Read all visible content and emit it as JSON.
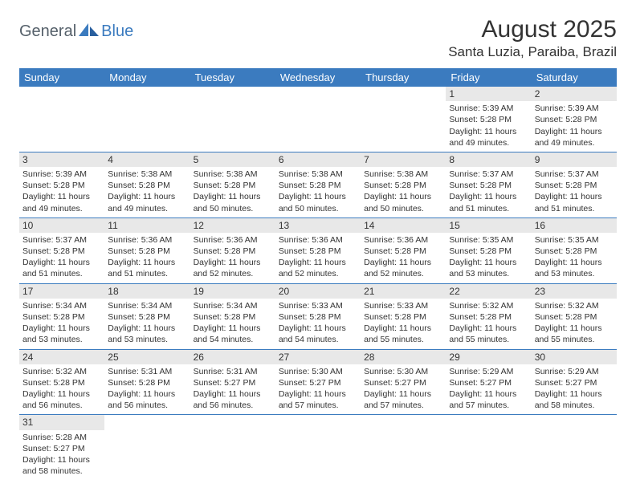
{
  "logo": {
    "part1": "General",
    "part2": "Blue"
  },
  "title": "August 2025",
  "location": "Santa Luzia, Paraiba, Brazil",
  "colors": {
    "header_bg": "#3b7bbf",
    "header_text": "#ffffff",
    "daynum_bg": "#e8e8e8",
    "cell_border": "#3b7bbf",
    "logo_gray": "#55606a",
    "logo_blue": "#3b7bbf"
  },
  "weekdays": [
    "Sunday",
    "Monday",
    "Tuesday",
    "Wednesday",
    "Thursday",
    "Friday",
    "Saturday"
  ],
  "weeks": [
    [
      {
        "n": "",
        "sr": "",
        "ss": "",
        "dl": ""
      },
      {
        "n": "",
        "sr": "",
        "ss": "",
        "dl": ""
      },
      {
        "n": "",
        "sr": "",
        "ss": "",
        "dl": ""
      },
      {
        "n": "",
        "sr": "",
        "ss": "",
        "dl": ""
      },
      {
        "n": "",
        "sr": "",
        "ss": "",
        "dl": ""
      },
      {
        "n": "1",
        "sr": "Sunrise: 5:39 AM",
        "ss": "Sunset: 5:28 PM",
        "dl": "Daylight: 11 hours and 49 minutes."
      },
      {
        "n": "2",
        "sr": "Sunrise: 5:39 AM",
        "ss": "Sunset: 5:28 PM",
        "dl": "Daylight: 11 hours and 49 minutes."
      }
    ],
    [
      {
        "n": "3",
        "sr": "Sunrise: 5:39 AM",
        "ss": "Sunset: 5:28 PM",
        "dl": "Daylight: 11 hours and 49 minutes."
      },
      {
        "n": "4",
        "sr": "Sunrise: 5:38 AM",
        "ss": "Sunset: 5:28 PM",
        "dl": "Daylight: 11 hours and 49 minutes."
      },
      {
        "n": "5",
        "sr": "Sunrise: 5:38 AM",
        "ss": "Sunset: 5:28 PM",
        "dl": "Daylight: 11 hours and 50 minutes."
      },
      {
        "n": "6",
        "sr": "Sunrise: 5:38 AM",
        "ss": "Sunset: 5:28 PM",
        "dl": "Daylight: 11 hours and 50 minutes."
      },
      {
        "n": "7",
        "sr": "Sunrise: 5:38 AM",
        "ss": "Sunset: 5:28 PM",
        "dl": "Daylight: 11 hours and 50 minutes."
      },
      {
        "n": "8",
        "sr": "Sunrise: 5:37 AM",
        "ss": "Sunset: 5:28 PM",
        "dl": "Daylight: 11 hours and 51 minutes."
      },
      {
        "n": "9",
        "sr": "Sunrise: 5:37 AM",
        "ss": "Sunset: 5:28 PM",
        "dl": "Daylight: 11 hours and 51 minutes."
      }
    ],
    [
      {
        "n": "10",
        "sr": "Sunrise: 5:37 AM",
        "ss": "Sunset: 5:28 PM",
        "dl": "Daylight: 11 hours and 51 minutes."
      },
      {
        "n": "11",
        "sr": "Sunrise: 5:36 AM",
        "ss": "Sunset: 5:28 PM",
        "dl": "Daylight: 11 hours and 51 minutes."
      },
      {
        "n": "12",
        "sr": "Sunrise: 5:36 AM",
        "ss": "Sunset: 5:28 PM",
        "dl": "Daylight: 11 hours and 52 minutes."
      },
      {
        "n": "13",
        "sr": "Sunrise: 5:36 AM",
        "ss": "Sunset: 5:28 PM",
        "dl": "Daylight: 11 hours and 52 minutes."
      },
      {
        "n": "14",
        "sr": "Sunrise: 5:36 AM",
        "ss": "Sunset: 5:28 PM",
        "dl": "Daylight: 11 hours and 52 minutes."
      },
      {
        "n": "15",
        "sr": "Sunrise: 5:35 AM",
        "ss": "Sunset: 5:28 PM",
        "dl": "Daylight: 11 hours and 53 minutes."
      },
      {
        "n": "16",
        "sr": "Sunrise: 5:35 AM",
        "ss": "Sunset: 5:28 PM",
        "dl": "Daylight: 11 hours and 53 minutes."
      }
    ],
    [
      {
        "n": "17",
        "sr": "Sunrise: 5:34 AM",
        "ss": "Sunset: 5:28 PM",
        "dl": "Daylight: 11 hours and 53 minutes."
      },
      {
        "n": "18",
        "sr": "Sunrise: 5:34 AM",
        "ss": "Sunset: 5:28 PM",
        "dl": "Daylight: 11 hours and 53 minutes."
      },
      {
        "n": "19",
        "sr": "Sunrise: 5:34 AM",
        "ss": "Sunset: 5:28 PM",
        "dl": "Daylight: 11 hours and 54 minutes."
      },
      {
        "n": "20",
        "sr": "Sunrise: 5:33 AM",
        "ss": "Sunset: 5:28 PM",
        "dl": "Daylight: 11 hours and 54 minutes."
      },
      {
        "n": "21",
        "sr": "Sunrise: 5:33 AM",
        "ss": "Sunset: 5:28 PM",
        "dl": "Daylight: 11 hours and 55 minutes."
      },
      {
        "n": "22",
        "sr": "Sunrise: 5:32 AM",
        "ss": "Sunset: 5:28 PM",
        "dl": "Daylight: 11 hours and 55 minutes."
      },
      {
        "n": "23",
        "sr": "Sunrise: 5:32 AM",
        "ss": "Sunset: 5:28 PM",
        "dl": "Daylight: 11 hours and 55 minutes."
      }
    ],
    [
      {
        "n": "24",
        "sr": "Sunrise: 5:32 AM",
        "ss": "Sunset: 5:28 PM",
        "dl": "Daylight: 11 hours and 56 minutes."
      },
      {
        "n": "25",
        "sr": "Sunrise: 5:31 AM",
        "ss": "Sunset: 5:28 PM",
        "dl": "Daylight: 11 hours and 56 minutes."
      },
      {
        "n": "26",
        "sr": "Sunrise: 5:31 AM",
        "ss": "Sunset: 5:27 PM",
        "dl": "Daylight: 11 hours and 56 minutes."
      },
      {
        "n": "27",
        "sr": "Sunrise: 5:30 AM",
        "ss": "Sunset: 5:27 PM",
        "dl": "Daylight: 11 hours and 57 minutes."
      },
      {
        "n": "28",
        "sr": "Sunrise: 5:30 AM",
        "ss": "Sunset: 5:27 PM",
        "dl": "Daylight: 11 hours and 57 minutes."
      },
      {
        "n": "29",
        "sr": "Sunrise: 5:29 AM",
        "ss": "Sunset: 5:27 PM",
        "dl": "Daylight: 11 hours and 57 minutes."
      },
      {
        "n": "30",
        "sr": "Sunrise: 5:29 AM",
        "ss": "Sunset: 5:27 PM",
        "dl": "Daylight: 11 hours and 58 minutes."
      }
    ],
    [
      {
        "n": "31",
        "sr": "Sunrise: 5:28 AM",
        "ss": "Sunset: 5:27 PM",
        "dl": "Daylight: 11 hours and 58 minutes."
      },
      {
        "n": "",
        "sr": "",
        "ss": "",
        "dl": ""
      },
      {
        "n": "",
        "sr": "",
        "ss": "",
        "dl": ""
      },
      {
        "n": "",
        "sr": "",
        "ss": "",
        "dl": ""
      },
      {
        "n": "",
        "sr": "",
        "ss": "",
        "dl": ""
      },
      {
        "n": "",
        "sr": "",
        "ss": "",
        "dl": ""
      },
      {
        "n": "",
        "sr": "",
        "ss": "",
        "dl": ""
      }
    ]
  ]
}
